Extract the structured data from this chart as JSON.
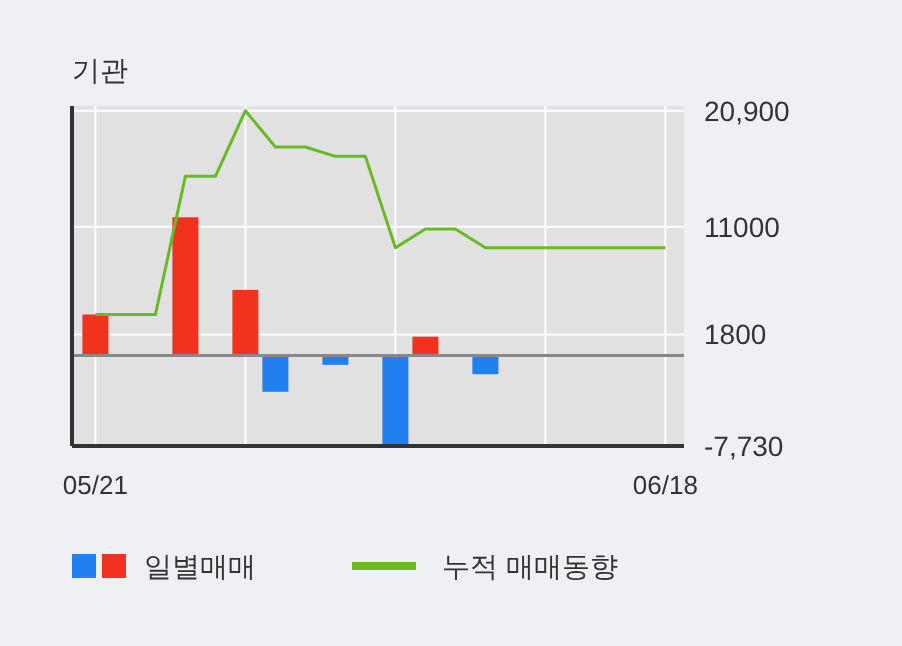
{
  "chart_data": {
    "type": "bar",
    "title": "기관",
    "categories": [
      "05/21",
      null,
      null,
      null,
      null,
      null,
      null,
      null,
      null,
      null,
      null,
      null,
      null,
      null,
      null,
      null,
      null,
      null,
      null,
      "06/18"
    ],
    "series": [
      {
        "name": "일별매매",
        "values": [
          3500,
          null,
          null,
          11800,
          null,
          5600,
          -3100,
          null,
          -800,
          null,
          -7730,
          1600,
          null,
          -1600,
          null,
          null,
          null,
          null,
          null,
          null
        ],
        "colors": [
          "#f0321e",
          null,
          null,
          "#f0321e",
          null,
          "#f0321e",
          "#2080f0",
          null,
          "#2080f0",
          null,
          "#2080f0",
          "#f0321e",
          null,
          "#2080f0",
          null,
          null,
          null,
          null,
          null,
          null
        ]
      },
      {
        "name": "누적 매매동향",
        "type": "line",
        "color": "#66bb22",
        "values": [
          3500,
          3500,
          3500,
          15300,
          15300,
          20900,
          17800,
          17800,
          17000,
          17000,
          9200,
          10800,
          10800,
          9200,
          9200,
          9200,
          9200,
          9200,
          9200,
          9200
        ]
      }
    ],
    "ylim": [
      -7730,
      21300
    ],
    "yticks": [
      {
        "value": 20900,
        "label": "20,900"
      },
      11000,
      1800,
      {
        "value": -7730,
        "label": "-7,730"
      }
    ],
    "grid": true,
    "legend": "bottom"
  }
}
